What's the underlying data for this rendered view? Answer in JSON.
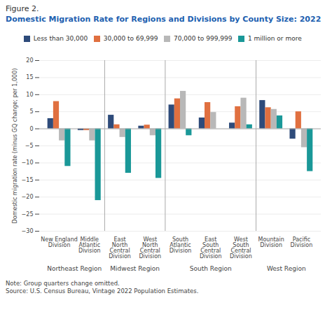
{
  "chart_data": {
    "type": "bar",
    "title": "Figure 2.",
    "subtitle": "Domestic Migration Rate for Regions and Divisions by County Size: 2022",
    "ylabel": "Domestic migration rate (minus GQ change; per 1,000)",
    "categories": [
      "New England\nDivision",
      "Middle\nAtlantic\nDivision",
      "East\nNorth\nCentral\nDivision",
      "West\nNorth\nCentral\nDivision",
      "South\nAtlantic\nDivision",
      "East\nSouth\nCentral\nDivision",
      "West\nSouth\nCentral\nDivision",
      "Mountain\nDivision",
      "Pacific\nDivision"
    ],
    "series": [
      {
        "name": "Less than 30,000",
        "color": "#2e4b7a",
        "values": [
          3.0,
          -0.5,
          4.0,
          0.8,
          7.0,
          3.2,
          1.7,
          8.3,
          -3.0
        ]
      },
      {
        "name": "30,000 to 69,999",
        "color": "#e07040",
        "values": [
          8.0,
          -0.5,
          1.2,
          1.1,
          8.8,
          7.7,
          6.5,
          6.2,
          5.0
        ]
      },
      {
        "name": "70,000 to 999,999",
        "color": "#b8b8b8",
        "values": [
          -3.5,
          -3.5,
          -2.5,
          -2.0,
          11.0,
          4.8,
          9.0,
          5.7,
          -5.5
        ]
      },
      {
        "name": "1 million or more",
        "color": "#1a9898",
        "values": [
          -11.0,
          -21.0,
          -13.0,
          -14.5,
          -2.0,
          0.0,
          1.2,
          3.8,
          -12.5
        ]
      }
    ],
    "ylim": [
      -30,
      20
    ],
    "yticks": [
      -30,
      -25,
      -20,
      -15,
      -10,
      -5,
      0,
      5,
      10,
      15,
      20
    ],
    "grid": true,
    "legend": "top",
    "regions": [
      {
        "label": "Northeast Region",
        "categories": [
          "New England\nDivision",
          "Middle\nAtlantic\nDivision"
        ]
      },
      {
        "label": "Midwest Region",
        "categories": [
          "East\nNorth\nCentral\nDivision",
          "West\nNorth\nCentral\nDivision"
        ]
      },
      {
        "label": "South Region",
        "categories": [
          "South\nAtlantic\nDivision",
          "East\nSouth\nCentral\nDivision",
          "West\nSouth\nCentral\nDivision"
        ]
      },
      {
        "label": "West Region",
        "categories": [
          "Mountain\nDivision",
          "Pacific\nDivision"
        ]
      }
    ],
    "note": "Note: Group quarters change omitted.\nSource: U.S. Census Bureau, Vintage 2022 Population Estimates."
  }
}
